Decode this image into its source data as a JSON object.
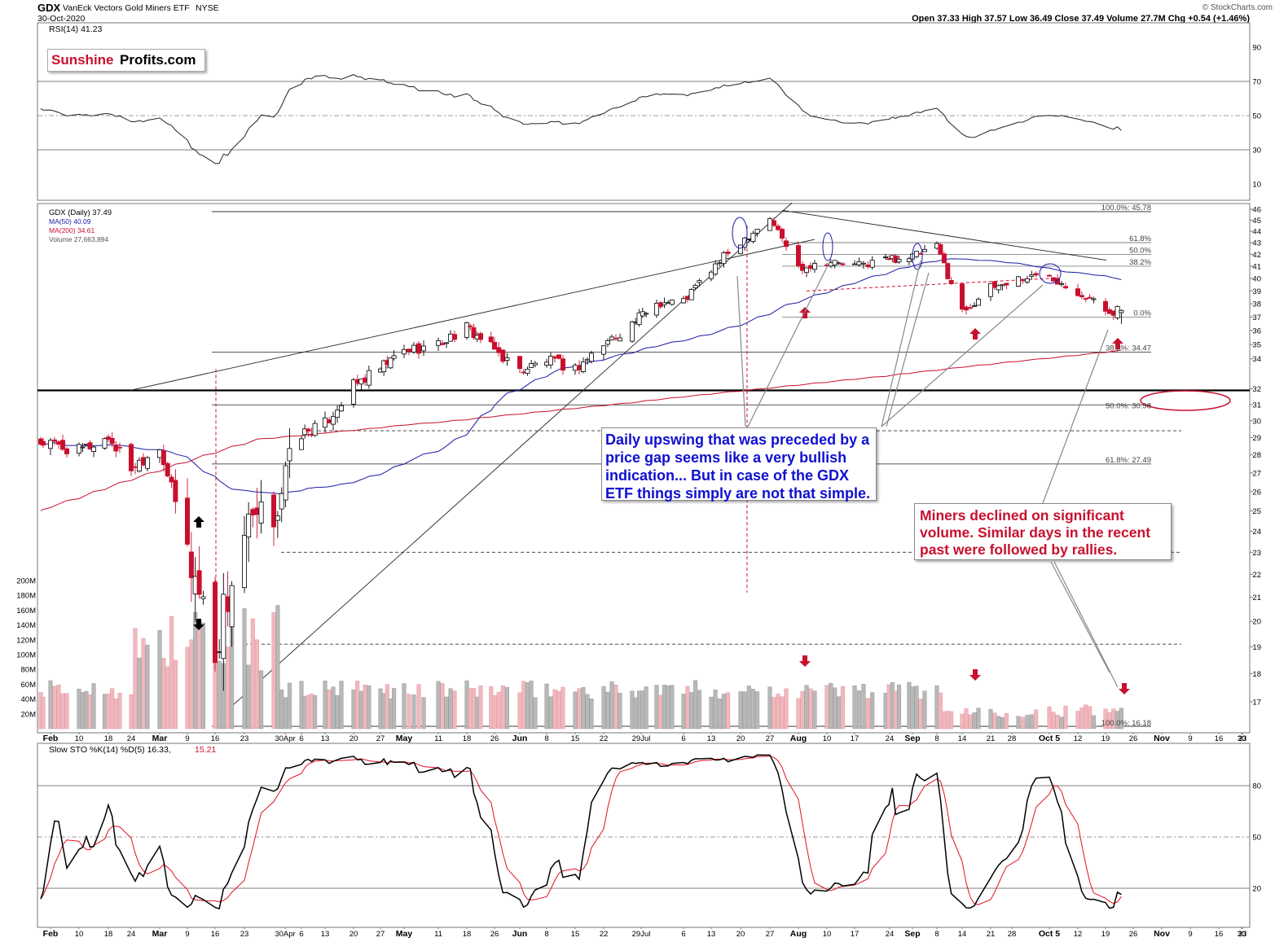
{
  "header": {
    "ticker": "GDX",
    "name": "VanEck Vectors Gold Miners ETF",
    "exchange": "NYSE",
    "date": "30-Oct-2020",
    "ohlc_text": "Open 37.33  High 37.57  Low 36.49  Close 37.49  Volume 27.7M  Chg +0.54 (+1.46%)",
    "credit": "© StockCharts.com"
  },
  "logo": {
    "part1": "Sunshine",
    "part2": "Profits.com"
  },
  "rsi_panel": {
    "label": "RSI(14) 41.23",
    "ticks": [
      "90",
      "70",
      "50",
      "30",
      "10"
    ]
  },
  "price_panel": {
    "legend": [
      "GDX (Daily) 37.49",
      "MA(50) 40.09",
      "MA(200) 34.61",
      "Volume 27,663,894"
    ],
    "price_ticks": [
      "46",
      "45",
      "44",
      "43",
      "42",
      "41",
      "40",
      "39",
      "38",
      "37",
      "36",
      "35",
      "34",
      "32",
      "31",
      "30",
      "29",
      "28",
      "27",
      "26",
      "25",
      "24",
      "23",
      "22",
      "21",
      "20",
      "19",
      "18",
      "17"
    ],
    "volume_ticks": [
      "200M",
      "180M",
      "160M",
      "140M",
      "120M",
      "100M",
      "80M",
      "60M",
      "40M",
      "20M"
    ],
    "fib_labels": [
      "100.0%: 45.78",
      "61.8%",
      "50.0%",
      "38.2%",
      "0.0%",
      "38.2%: 34.47",
      "50.0%: 30.98",
      "61.8%: 27.49",
      "100.0%: 16.18"
    ]
  },
  "x_axis": {
    "labels": [
      "Feb",
      "10",
      "18",
      "24",
      "Mar",
      "9",
      "16",
      "23",
      "30Apr",
      "6",
      "13",
      "20",
      "27",
      "May",
      "11",
      "18",
      "26",
      "Jun",
      "8",
      "15",
      "22",
      "29Jul",
      "6",
      "13",
      "20",
      "27",
      "Aug",
      "10",
      "17",
      "24",
      "Sep",
      "8",
      "14",
      "21",
      "28",
      "Oct 5",
      "12",
      "19",
      "26",
      "Nov",
      "9",
      "16",
      "23",
      "30"
    ]
  },
  "sto_panel": {
    "label_k": "Slow STO %K(14) %D(5) 16.33,",
    "label_d": "15.21",
    "ticks": [
      "80",
      "50",
      "20"
    ]
  },
  "annotations": {
    "blue_callout": "Daily upswing that was preceded by a price gap seems like a very bullish indication... But in case of the GDX ETF things simply are not that simple.",
    "red_callout": "Miners declined on significant volume. Similar days in the recent past were followed by rallies."
  },
  "colors": {
    "up": "#ffffff",
    "down": "#c8102e",
    "ma50": "#1a1aa6",
    "ma200": "#c8102e",
    "annotation_blue": "#1010d0",
    "annotation_red": "#c8102e"
  },
  "chart_data": {
    "type": "candlestick",
    "title": "GDX VanEck Vectors Gold Miners ETF NYSE",
    "period": "Feb 2020 - Oct 2020 (daily)",
    "last": {
      "open": 37.33,
      "high": 37.57,
      "low": 36.49,
      "close": 37.49,
      "volume": "27.7M",
      "change": 0.54,
      "change_pct": 1.46
    },
    "ma50_last": 40.09,
    "ma200_last": 34.61,
    "volume_last": 27663894,
    "rsi14_last": 41.23,
    "stoch_k_last": 16.33,
    "stoch_d_last": 15.21,
    "fibonacci_levels": [
      {
        "label": "100.0%",
        "value": 45.78
      },
      {
        "label": "38.2%",
        "value": 34.47
      },
      {
        "label": "50.0%",
        "value": 30.98
      },
      {
        "label": "61.8%",
        "value": 27.49
      },
      {
        "label": "100.0%",
        "value": 16.18
      }
    ],
    "price_ylim": [
      16,
      46.5
    ],
    "rsi_ylim": [
      0,
      100
    ],
    "sto_ylim": [
      0,
      100
    ],
    "approx_weekly_closes": [
      {
        "x": "Feb 3",
        "close": 28.6
      },
      {
        "x": "Feb 10",
        "close": 28.2
      },
      {
        "x": "Feb 18",
        "close": 29.0
      },
      {
        "x": "Feb 24",
        "close": 27.3
      },
      {
        "x": "Mar 2",
        "close": 28.5
      },
      {
        "x": "Mar 9",
        "close": 23.0
      },
      {
        "x": "Mar 16",
        "close": 19.0
      },
      {
        "x": "Mar 23",
        "close": 23.8
      },
      {
        "x": "Mar 30",
        "close": 24.9
      },
      {
        "x": "Apr 6",
        "close": 29.2
      },
      {
        "x": "Apr 13",
        "close": 29.8
      },
      {
        "x": "Apr 20",
        "close": 32.2
      },
      {
        "x": "Apr 27",
        "close": 33.3
      },
      {
        "x": "May 4",
        "close": 34.6
      },
      {
        "x": "May 11",
        "close": 35.0
      },
      {
        "x": "May 18",
        "close": 36.2
      },
      {
        "x": "May 26",
        "close": 34.6
      },
      {
        "x": "Jun 1",
        "close": 33.2
      },
      {
        "x": "Jun 8",
        "close": 33.9
      },
      {
        "x": "Jun 15",
        "close": 33.3
      },
      {
        "x": "Jun 22",
        "close": 35.0
      },
      {
        "x": "Jun 29",
        "close": 36.5
      },
      {
        "x": "Jul 6",
        "close": 38.1
      },
      {
        "x": "Jul 13",
        "close": 38.2
      },
      {
        "x": "Jul 20",
        "close": 40.7
      },
      {
        "x": "Jul 27",
        "close": 43.1
      },
      {
        "x": "Aug 3",
        "close": 45.2
      },
      {
        "x": "Aug 10",
        "close": 40.9
      },
      {
        "x": "Aug 17",
        "close": 41.4
      },
      {
        "x": "Aug 24",
        "close": 41.0
      },
      {
        "x": "Aug 31",
        "close": 41.6
      },
      {
        "x": "Sep 8",
        "close": 41.8
      },
      {
        "x": "Sep 14",
        "close": 42.6
      },
      {
        "x": "Sep 21",
        "close": 37.4
      },
      {
        "x": "Sep 28",
        "close": 39.2
      },
      {
        "x": "Oct 5",
        "close": 40.0
      },
      {
        "x": "Oct 12",
        "close": 40.3
      },
      {
        "x": "Oct 19",
        "close": 39.0
      },
      {
        "x": "Oct 26",
        "close": 37.5
      },
      {
        "x": "Oct 30",
        "close": 37.49
      }
    ]
  }
}
